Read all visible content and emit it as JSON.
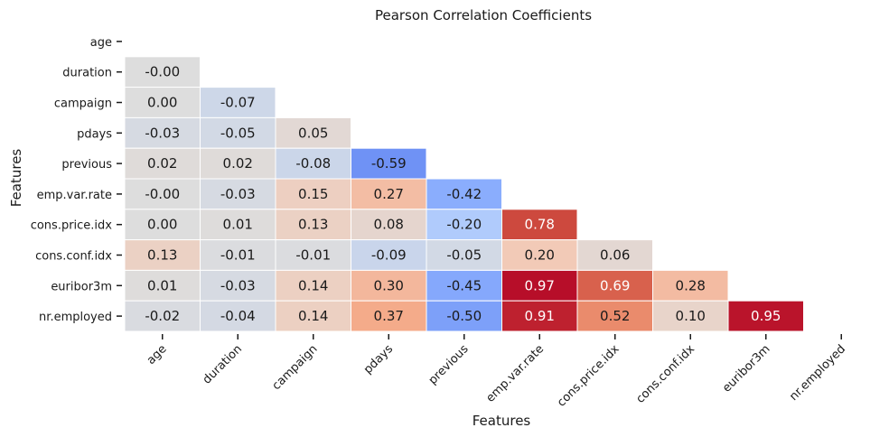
{
  "chart_data": {
    "type": "heatmap",
    "title": "Pearson Correlation Coefficients",
    "xlabel": "Features",
    "ylabel": "Features",
    "features": [
      "age",
      "duration",
      "campaign",
      "pdays",
      "previous",
      "emp.var.rate",
      "cons.price.idx",
      "cons.conf.idx",
      "euribor3m",
      "nr.employed"
    ],
    "mask": "upper triangle including diagonal",
    "colormap": "coolwarm",
    "vmin": -1,
    "vmax": 1,
    "annotation_format": "0.00",
    "rows": [
      {
        "feature": "age",
        "values": []
      },
      {
        "feature": "duration",
        "values": [
          -0.0
        ]
      },
      {
        "feature": "campaign",
        "values": [
          0.0,
          -0.07
        ]
      },
      {
        "feature": "pdays",
        "values": [
          -0.03,
          -0.05,
          0.05
        ]
      },
      {
        "feature": "previous",
        "values": [
          0.02,
          0.02,
          -0.08,
          -0.59
        ]
      },
      {
        "feature": "emp.var.rate",
        "values": [
          -0.0,
          -0.03,
          0.15,
          0.27,
          -0.42
        ]
      },
      {
        "feature": "cons.price.idx",
        "values": [
          0.0,
          0.01,
          0.13,
          0.08,
          -0.2,
          0.78
        ]
      },
      {
        "feature": "cons.conf.idx",
        "values": [
          0.13,
          -0.01,
          -0.01,
          -0.09,
          -0.05,
          0.2,
          0.06
        ]
      },
      {
        "feature": "euribor3m",
        "values": [
          0.01,
          -0.03,
          0.14,
          0.3,
          -0.45,
          0.97,
          0.69,
          0.28
        ]
      },
      {
        "feature": "nr.employed",
        "values": [
          -0.02,
          -0.04,
          0.14,
          0.37,
          -0.5,
          0.91,
          0.52,
          0.1,
          0.95
        ]
      }
    ],
    "cell_text": [
      [],
      [
        "-0.00"
      ],
      [
        "0.00",
        "-0.07"
      ],
      [
        "-0.03",
        "-0.05",
        "0.05"
      ],
      [
        "0.02",
        "0.02",
        "-0.08",
        "-0.59"
      ],
      [
        "-0.00",
        "-0.03",
        "0.15",
        "0.27",
        "-0.42"
      ],
      [
        "0.00",
        "0.01",
        "0.13",
        "0.08",
        "-0.20",
        "0.78"
      ],
      [
        "0.13",
        "-0.01",
        "-0.01",
        "-0.09",
        "-0.05",
        "0.20",
        "0.06"
      ],
      [
        "0.01",
        "-0.03",
        "0.14",
        "0.30",
        "-0.45",
        "0.97",
        "0.69",
        "0.28"
      ],
      [
        "-0.02",
        "-0.04",
        "0.14",
        "0.37",
        "-0.50",
        "0.91",
        "0.52",
        "0.10",
        "0.95"
      ]
    ]
  }
}
